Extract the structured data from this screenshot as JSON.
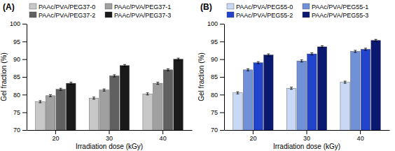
{
  "chart_data": [
    {
      "type": "bar",
      "title": "(A)",
      "xlabel": "Irradiation dose (kGy)",
      "ylabel": "Gel fraction (%)",
      "categories": [
        "20",
        "30",
        "40"
      ],
      "series": [
        {
          "name": "PAAc/PVA/PEG37-0",
          "color": "#c8c8c8",
          "values": [
            78.0,
            79.0,
            80.2
          ],
          "errors": [
            0.3,
            0.3,
            0.3
          ]
        },
        {
          "name": "PAAc/PVA/PEG37-1",
          "color": "#a0a0a0",
          "values": [
            79.7,
            81.3,
            83.2
          ],
          "errors": [
            0.3,
            0.3,
            0.3
          ]
        },
        {
          "name": "PAAc/PVA/PEG37-2",
          "color": "#606060",
          "values": [
            81.5,
            85.3,
            87.0
          ],
          "errors": [
            0.3,
            0.3,
            0.3
          ]
        },
        {
          "name": "PAAc/PVA/PEG37-3",
          "color": "#1a1a1a",
          "values": [
            83.2,
            88.2,
            90.0
          ],
          "errors": [
            0.3,
            0.3,
            0.3
          ]
        }
      ],
      "ylim": [
        70,
        100
      ],
      "yticks": [
        70,
        75,
        80,
        85,
        90,
        95,
        100
      ],
      "legend": "top",
      "grid": false
    },
    {
      "type": "bar",
      "title": "(B)",
      "xlabel": "Irradiation dose (kGy)",
      "ylabel": "Gel fraction (%)",
      "categories": [
        "20",
        "30",
        "40"
      ],
      "series": [
        {
          "name": "PAAc/PVA/PEG55-0",
          "color": "#c8d8f5",
          "values": [
            80.5,
            81.8,
            83.5
          ],
          "errors": [
            0.3,
            0.3,
            0.3
          ]
        },
        {
          "name": "PAAc/PVA/PEG55-1",
          "color": "#7090d8",
          "values": [
            87.0,
            89.5,
            92.2
          ],
          "errors": [
            0.3,
            0.3,
            0.3
          ]
        },
        {
          "name": "PAAc/PVA/PEG55-2",
          "color": "#2244cc",
          "values": [
            89.0,
            91.5,
            92.8
          ],
          "errors": [
            0.3,
            0.3,
            0.3
          ]
        },
        {
          "name": "PAAc/PVA/PEG55-3",
          "color": "#0a1870",
          "values": [
            91.2,
            93.5,
            95.3
          ],
          "errors": [
            0.3,
            0.3,
            0.3
          ]
        }
      ],
      "ylim": [
        70,
        100
      ],
      "yticks": [
        70,
        75,
        80,
        85,
        90,
        95,
        100
      ],
      "legend": "top",
      "grid": false
    }
  ]
}
